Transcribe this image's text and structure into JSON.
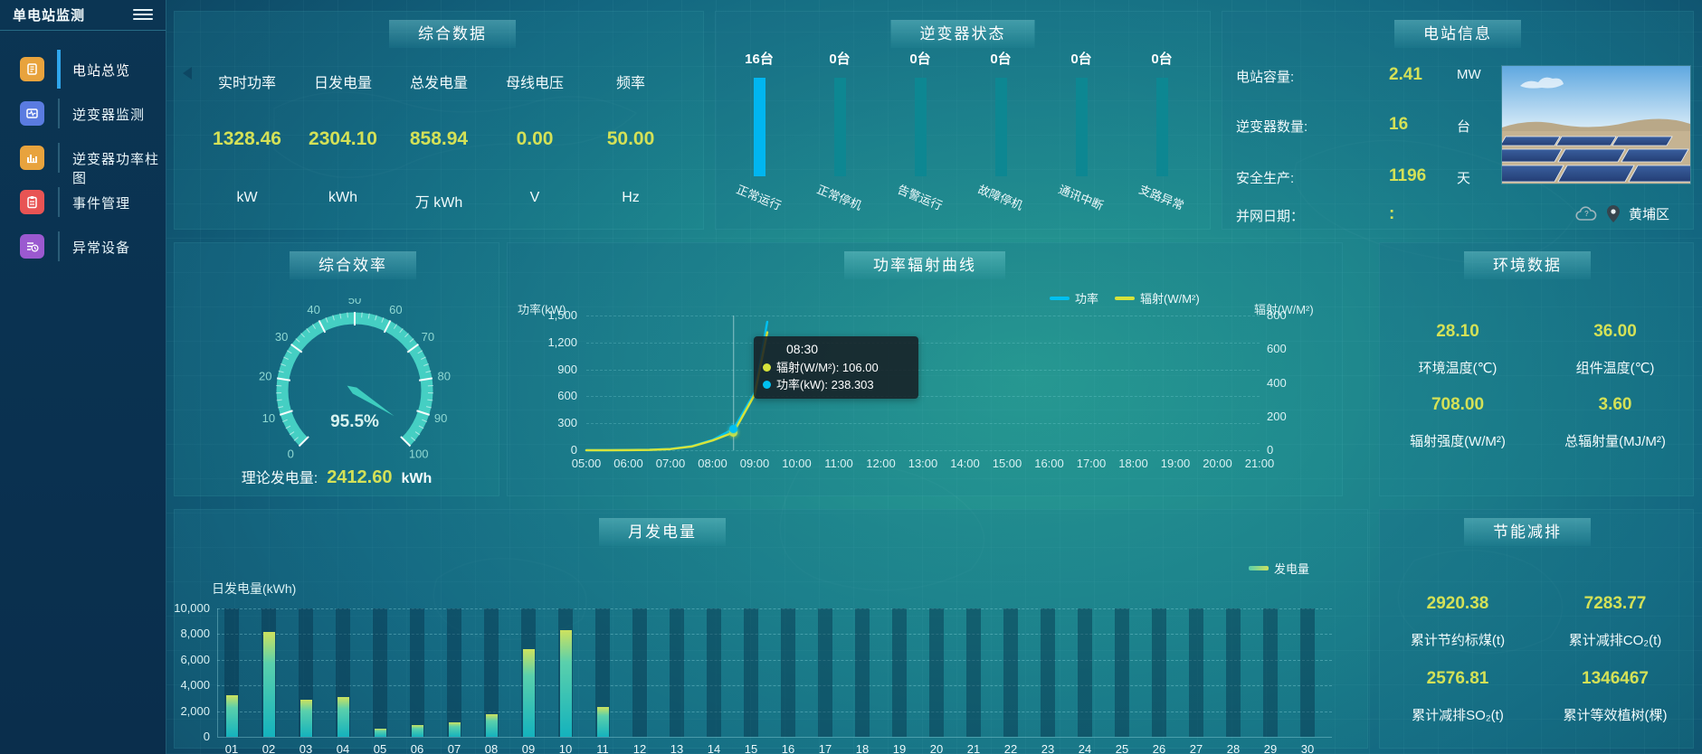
{
  "app": {
    "title": "单电站监测"
  },
  "sidebar": {
    "items": [
      {
        "label": "电站总览",
        "icon": "overview-book-icon",
        "active": true
      },
      {
        "label": "逆变器监测",
        "icon": "inverter-monitor-icon",
        "active": false
      },
      {
        "label": "逆变器功率柱图",
        "icon": "power-barchart-icon",
        "active": false
      },
      {
        "label": "事件管理",
        "icon": "event-clipboard-icon",
        "active": false
      },
      {
        "label": "异常设备",
        "icon": "abnormal-device-icon",
        "active": false
      }
    ]
  },
  "panels": {
    "summary": {
      "title": "综合数据",
      "metrics": [
        {
          "label": "实时功率",
          "value": "1328.46",
          "unit": "kW"
        },
        {
          "label": "日发电量",
          "value": "2304.10",
          "unit": "kWh"
        },
        {
          "label": "总发电量",
          "value": "858.94",
          "unit": "万 kWh"
        },
        {
          "label": "母线电压",
          "value": "0.00",
          "unit": "V"
        },
        {
          "label": "频率",
          "value": "50.00",
          "unit": "Hz"
        }
      ]
    },
    "inverter": {
      "title": "逆变器状态"
    },
    "station": {
      "title": "电站信息",
      "rows": [
        {
          "label": "电站容量:",
          "value": "2.41",
          "unit": "MW"
        },
        {
          "label": "逆变器数量:",
          "value": "16",
          "unit": "台"
        },
        {
          "label": "安全生产:",
          "value": "1196",
          "unit": "天"
        },
        {
          "label": "并网日期：",
          "value": ":",
          "unit": ""
        }
      ],
      "location": "黄埔区"
    },
    "efficiency": {
      "title": "综合效率",
      "theory_label": "理论发电量:",
      "theory_value": "2412.60",
      "theory_unit": "kWh"
    },
    "curve": {
      "title": "功率辐射曲线"
    },
    "environment": {
      "title": "环境数据",
      "metrics": [
        {
          "value": "28.10",
          "label": "环境温度(℃)"
        },
        {
          "value": "36.00",
          "label": "组件温度(℃)"
        },
        {
          "value": "708.00",
          "label": "辐射强度(W/M²)"
        },
        {
          "value": "3.60",
          "label": "总辐射量(MJ/M²)"
        }
      ]
    },
    "monthly": {
      "title": "月发电量"
    },
    "saving": {
      "title": "节能减排",
      "metrics": [
        {
          "value": "2920.38",
          "label": "累计节约标煤(t)"
        },
        {
          "value": "7283.77",
          "label": "累计减排CO₂(t)"
        },
        {
          "value": "2576.81",
          "label": "累计减排SO₂(t)"
        },
        {
          "value": "1346467",
          "label": "累计等效植树(棵)"
        }
      ]
    }
  },
  "colors": {
    "accent_yellow": "#d4e157",
    "power_blue": "#00c0f0",
    "teal_bar": "#0d8792",
    "gauge_teal": "#45cfc3"
  },
  "chart_data": [
    {
      "id": "inverter_status",
      "type": "bar",
      "equal_height": true,
      "categories": [
        "正常运行",
        "正常停机",
        "告警运行",
        "故障停机",
        "通讯中断",
        "支路异常"
      ],
      "values": [
        16,
        0,
        0,
        0,
        0,
        0
      ],
      "counts": [
        "16台",
        "0台",
        "0台",
        "0台",
        "0台",
        "0台"
      ],
      "highlight_color": "#00b6f0",
      "bar_color": "#0d8792"
    },
    {
      "id": "efficiency_gauge",
      "type": "gauge",
      "value": 95.5,
      "display": "95.5%",
      "min": 0,
      "max": 100,
      "tick_step": 10,
      "color": "#45cfc3"
    },
    {
      "id": "power_radiation",
      "type": "line",
      "title": "功率辐射曲线",
      "x_labels": [
        "05:00",
        "06:00",
        "07:00",
        "08:00",
        "09:00",
        "10:00",
        "11:00",
        "12:00",
        "13:00",
        "14:00",
        "15:00",
        "16:00",
        "17:00",
        "18:00",
        "19:00",
        "20:00",
        "21:00"
      ],
      "left_axis": {
        "title": "功率(kW)",
        "ticks": [
          0,
          300,
          600,
          900,
          1200,
          1500
        ],
        "max": 1500
      },
      "right_axis": {
        "title": "辐射(W/M²)",
        "ticks": [
          0,
          200,
          400,
          600,
          800
        ],
        "max": 800
      },
      "legend": [
        {
          "name": "功率",
          "color": "#00c0f0"
        },
        {
          "name": "辐射(W/M²)",
          "color": "#d7e33a"
        }
      ],
      "series": [
        {
          "name": "功率",
          "axis": "left",
          "color": "#00c0f0",
          "points": [
            [
              0,
              0
            ],
            [
              0.5,
              0
            ],
            [
              1,
              2
            ],
            [
              1.5,
              5
            ],
            [
              2,
              14
            ],
            [
              2.5,
              45
            ],
            [
              3,
              115
            ],
            [
              3.5,
              238.3
            ],
            [
              4,
              640
            ],
            [
              4.3,
              1430
            ]
          ]
        },
        {
          "name": "辐射",
          "axis": "right",
          "color": "#d7e33a",
          "points": [
            [
              0,
              0
            ],
            [
              0.5,
              0
            ],
            [
              1,
              1
            ],
            [
              1.5,
              2
            ],
            [
              2,
              7
            ],
            [
              2.5,
              22
            ],
            [
              3,
              58
            ],
            [
              3.5,
              106
            ],
            [
              4,
              330
            ],
            [
              4.3,
              700
            ]
          ]
        }
      ],
      "crosshair_hour": 3.5,
      "tooltip": {
        "time": "08:30",
        "items": [
          {
            "color": "#d7e33a",
            "label": "辐射(W/M²): 106.00"
          },
          {
            "color": "#00c0f0",
            "label": "功率(kW): 238.303"
          }
        ]
      }
    },
    {
      "id": "monthly_energy",
      "type": "bar",
      "title": "月发电量",
      "ylabel": "日发电量(kWh)",
      "legend": "发电量",
      "categories": [
        "01",
        "02",
        "03",
        "04",
        "05",
        "06",
        "07",
        "08",
        "09",
        "10",
        "11",
        "12",
        "13",
        "14",
        "15",
        "16",
        "17",
        "18",
        "19",
        "20",
        "21",
        "22",
        "23",
        "24",
        "25",
        "26",
        "27",
        "28",
        "29",
        "30"
      ],
      "values": [
        3250,
        8200,
        2900,
        3100,
        650,
        950,
        1150,
        1750,
        6800,
        8300,
        2350,
        0,
        0,
        0,
        0,
        0,
        0,
        0,
        0,
        0,
        0,
        0,
        0,
        0,
        0,
        0,
        0,
        0,
        0,
        0
      ],
      "yticks": [
        0,
        2000,
        4000,
        6000,
        8000,
        10000
      ],
      "ymax": 10000
    }
  ]
}
